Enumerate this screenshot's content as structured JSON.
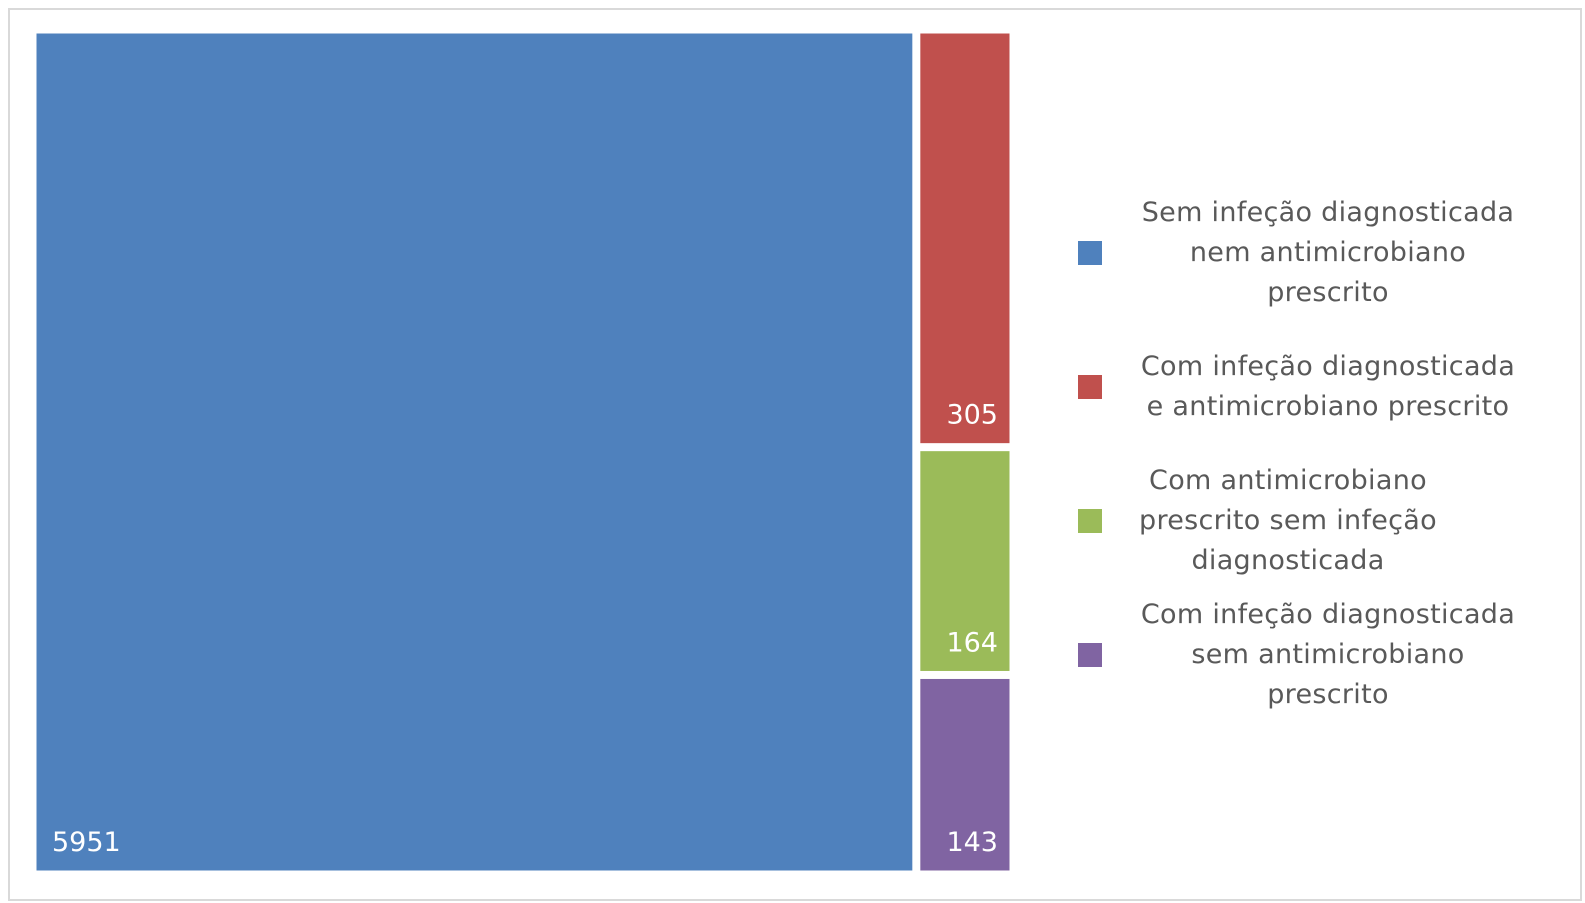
{
  "chart_data": {
    "type": "treemap",
    "title": "",
    "series": [
      {
        "name": "Sem infeção diagnosticada nem antimicrobiano prescrito",
        "value": 5951,
        "label": "5951",
        "color": "#4F81BD"
      },
      {
        "name": "Com infeção diagnosticada e antimicrobiano prescrito",
        "value": 305,
        "label": "305",
        "color": "#C0504D"
      },
      {
        "name": "Com antimicrobiano prescrito sem infeção diagnosticada",
        "value": 164,
        "label": "164",
        "color": "#9BBB59"
      },
      {
        "name": "Com infeção diagnosticada sem antimicrobiano prescrito",
        "value": 143,
        "label": "143",
        "color": "#8064A2"
      }
    ],
    "legend": {
      "position": "right",
      "items": [
        {
          "lines": [
            "Sem infeção diagnosticada",
            "nem antimicrobiano",
            "prescrito"
          ]
        },
        {
          "lines": [
            "Com infeção diagnosticada",
            "e antimicrobiano prescrito"
          ]
        },
        {
          "lines": [
            "Com antimicrobiano",
            "prescrito sem infeção",
            "diagnosticada"
          ]
        },
        {
          "lines": [
            "Com infeção diagnosticada",
            "sem antimicrobiano",
            "prescrito"
          ]
        }
      ]
    }
  }
}
